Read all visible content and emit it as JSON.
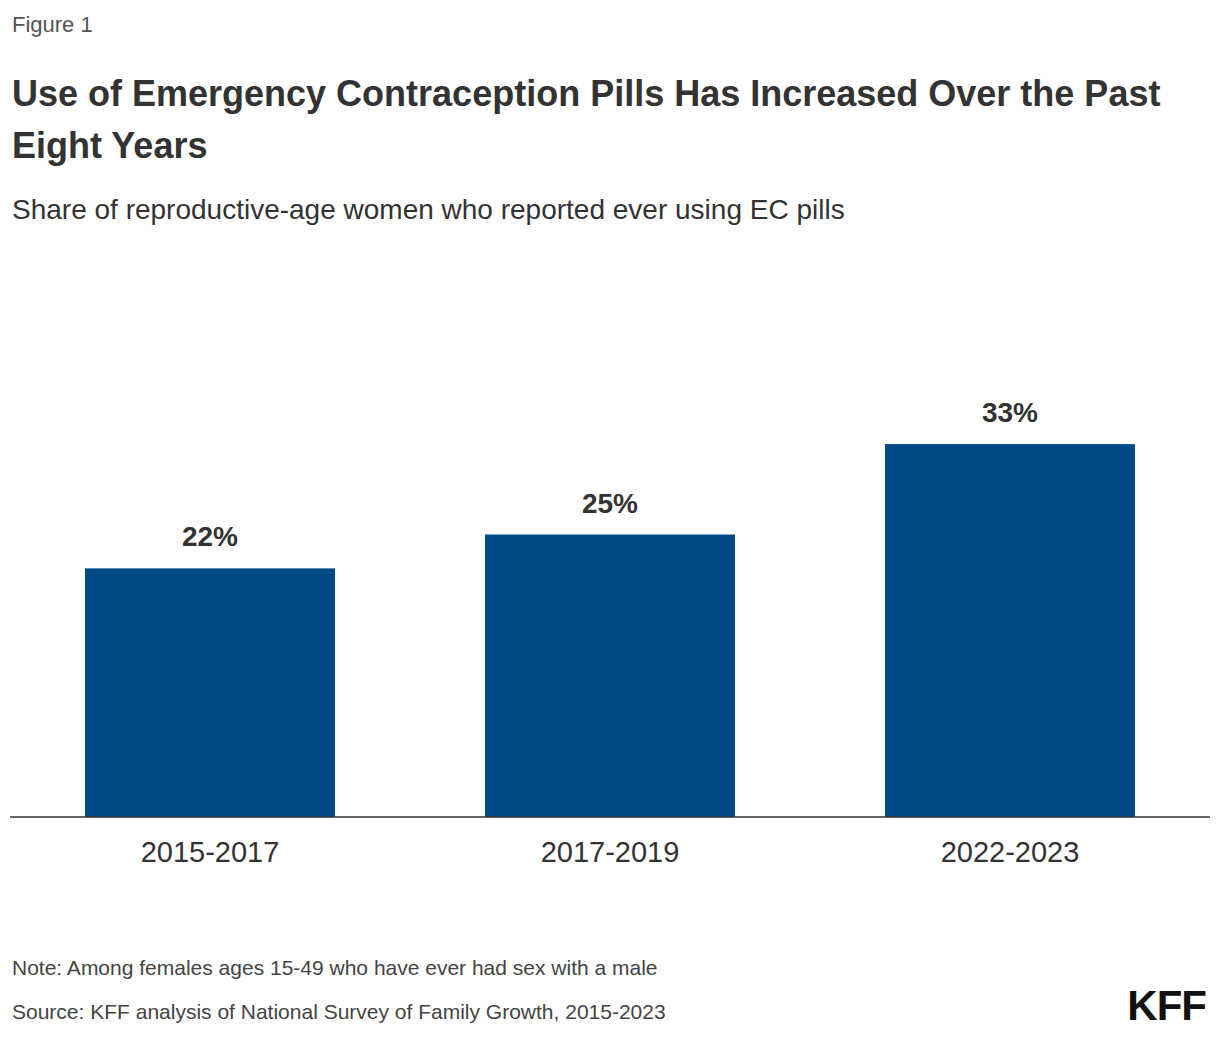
{
  "chart_data": {
    "type": "bar",
    "figure_label": "Figure 1",
    "title": "Use of Emergency Contraception Pills Has Increased Over the Past Eight Years",
    "subtitle": "Share of reproductive-age women who reported ever using EC pills",
    "categories": [
      "2015-2017",
      "2017-2019",
      "2022-2023"
    ],
    "values": [
      22,
      25,
      33
    ],
    "value_labels": [
      "22%",
      "25%",
      "33%"
    ],
    "color": "#004a87",
    "ylim": [
      0,
      40
    ],
    "grid": false,
    "data_labels": true,
    "tick_labels": "x",
    "note": "Note: Among females ages 15-49 who have ever had sex with a male",
    "source": "Source: KFF analysis of National Survey of Family Growth, 2015-2023",
    "logo": "KFF"
  }
}
